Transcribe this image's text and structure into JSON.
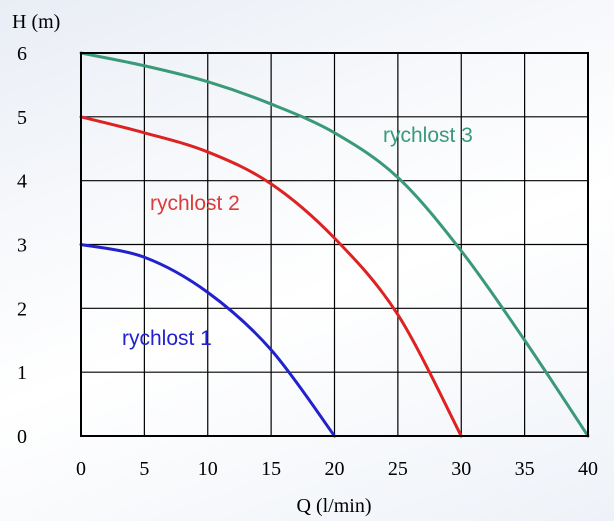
{
  "chart_data": {
    "type": "line",
    "xlabel": "Q (l/min)",
    "ylabel": "H (m)",
    "xlim": [
      0,
      40
    ],
    "ylim": [
      0,
      6
    ],
    "x_ticks": [
      "0",
      "5",
      "10",
      "15",
      "20",
      "25",
      "30",
      "35",
      "40"
    ],
    "y_ticks": [
      "0",
      "1",
      "2",
      "3",
      "4",
      "5",
      "6"
    ],
    "grid": true,
    "legend": "inline labels",
    "series": [
      {
        "name": "rychlost 1",
        "color": "#2222cc",
        "x": [
          0,
          5,
          10,
          15,
          20
        ],
        "y": [
          3.0,
          2.8,
          2.25,
          1.35,
          0.0
        ]
      },
      {
        "name": "rychlost 2",
        "color": "#dd2222",
        "x": [
          0,
          5,
          10,
          15,
          20,
          25,
          30
        ],
        "y": [
          5.0,
          4.75,
          4.45,
          3.95,
          3.1,
          1.9,
          0.0
        ]
      },
      {
        "name": "rychlost 3",
        "color": "#3a9a78",
        "x": [
          0,
          5,
          10,
          15,
          20,
          25,
          30,
          35,
          40
        ],
        "y": [
          6.0,
          5.8,
          5.55,
          5.2,
          4.75,
          4.05,
          2.9,
          1.5,
          0.0
        ]
      }
    ]
  }
}
